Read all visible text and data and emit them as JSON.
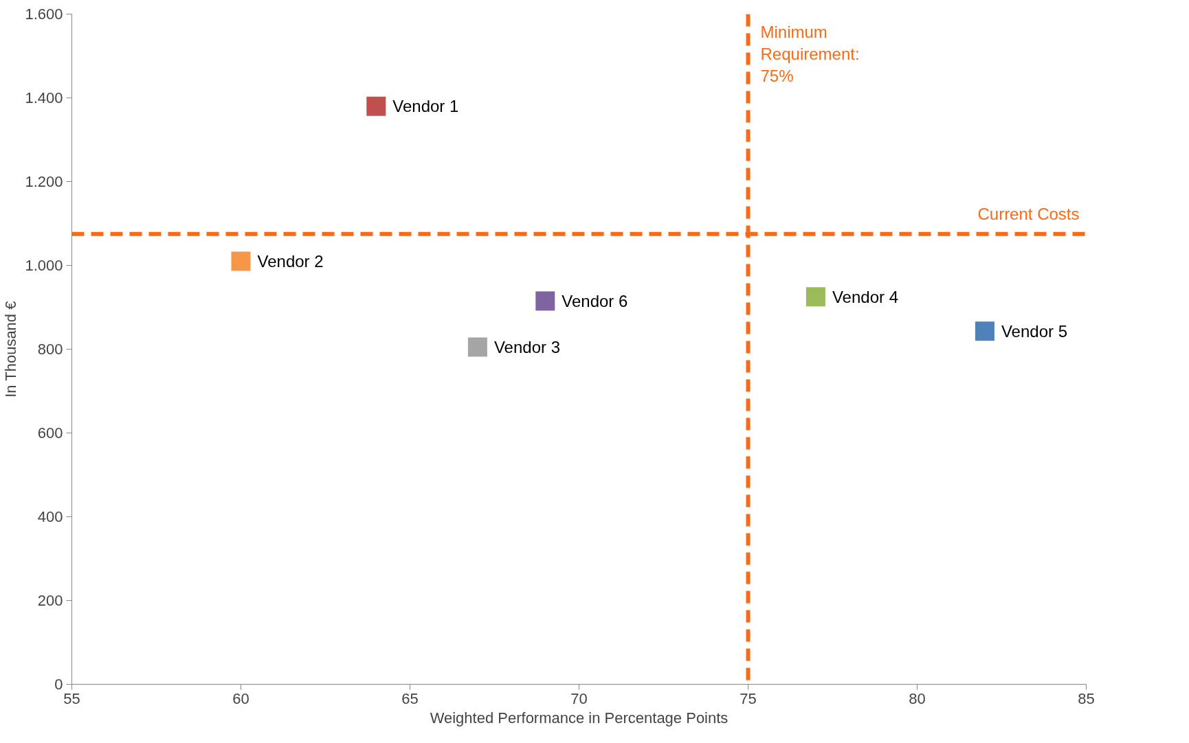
{
  "chart_data": {
    "type": "scatter",
    "xlabel": "Weighted Performance in Percentage Points",
    "ylabel": "In Thousand €",
    "xlim": [
      55,
      85
    ],
    "xticks": [
      55,
      60,
      65,
      70,
      75,
      80,
      85
    ],
    "ylim": [
      0,
      1600
    ],
    "yticks": [
      0,
      200,
      400,
      600,
      800,
      {
        "value": 1000,
        "label": "1.000"
      },
      {
        "value": 1200,
        "label": "1.200"
      },
      {
        "value": 1400,
        "label": "1.400"
      },
      {
        "value": 1600,
        "label": "1.600"
      }
    ],
    "series": [
      {
        "name": "Vendor 1",
        "color": "#c0504d",
        "x": [
          64
        ],
        "values": [
          1380
        ]
      },
      {
        "name": "Vendor 2",
        "color": "#f79646",
        "x": [
          60
        ],
        "values": [
          1010
        ]
      },
      {
        "name": "Vendor 3",
        "color": "#a5a5a5",
        "x": [
          67
        ],
        "values": [
          805
        ]
      },
      {
        "name": "Vendor 4",
        "color": "#9bbb59",
        "x": [
          77
        ],
        "values": [
          925
        ]
      },
      {
        "name": "Vendor 5",
        "color": "#4f81bd",
        "x": [
          82
        ],
        "values": [
          843
        ]
      },
      {
        "name": "Vendor 6",
        "color": "#8064a2",
        "x": [
          69
        ],
        "values": [
          915
        ]
      }
    ],
    "ref_lines": [
      {
        "axis": "x",
        "value": 75,
        "label": "Minimum Requirement: 75%",
        "color": "#fb6a16",
        "line_style": "dashed"
      },
      {
        "axis": "y",
        "value": 1075,
        "label": "Current Costs",
        "color": "#fb6a16",
        "line_style": "dashed"
      }
    ],
    "marker": "square",
    "grid": false,
    "legend": false
  }
}
